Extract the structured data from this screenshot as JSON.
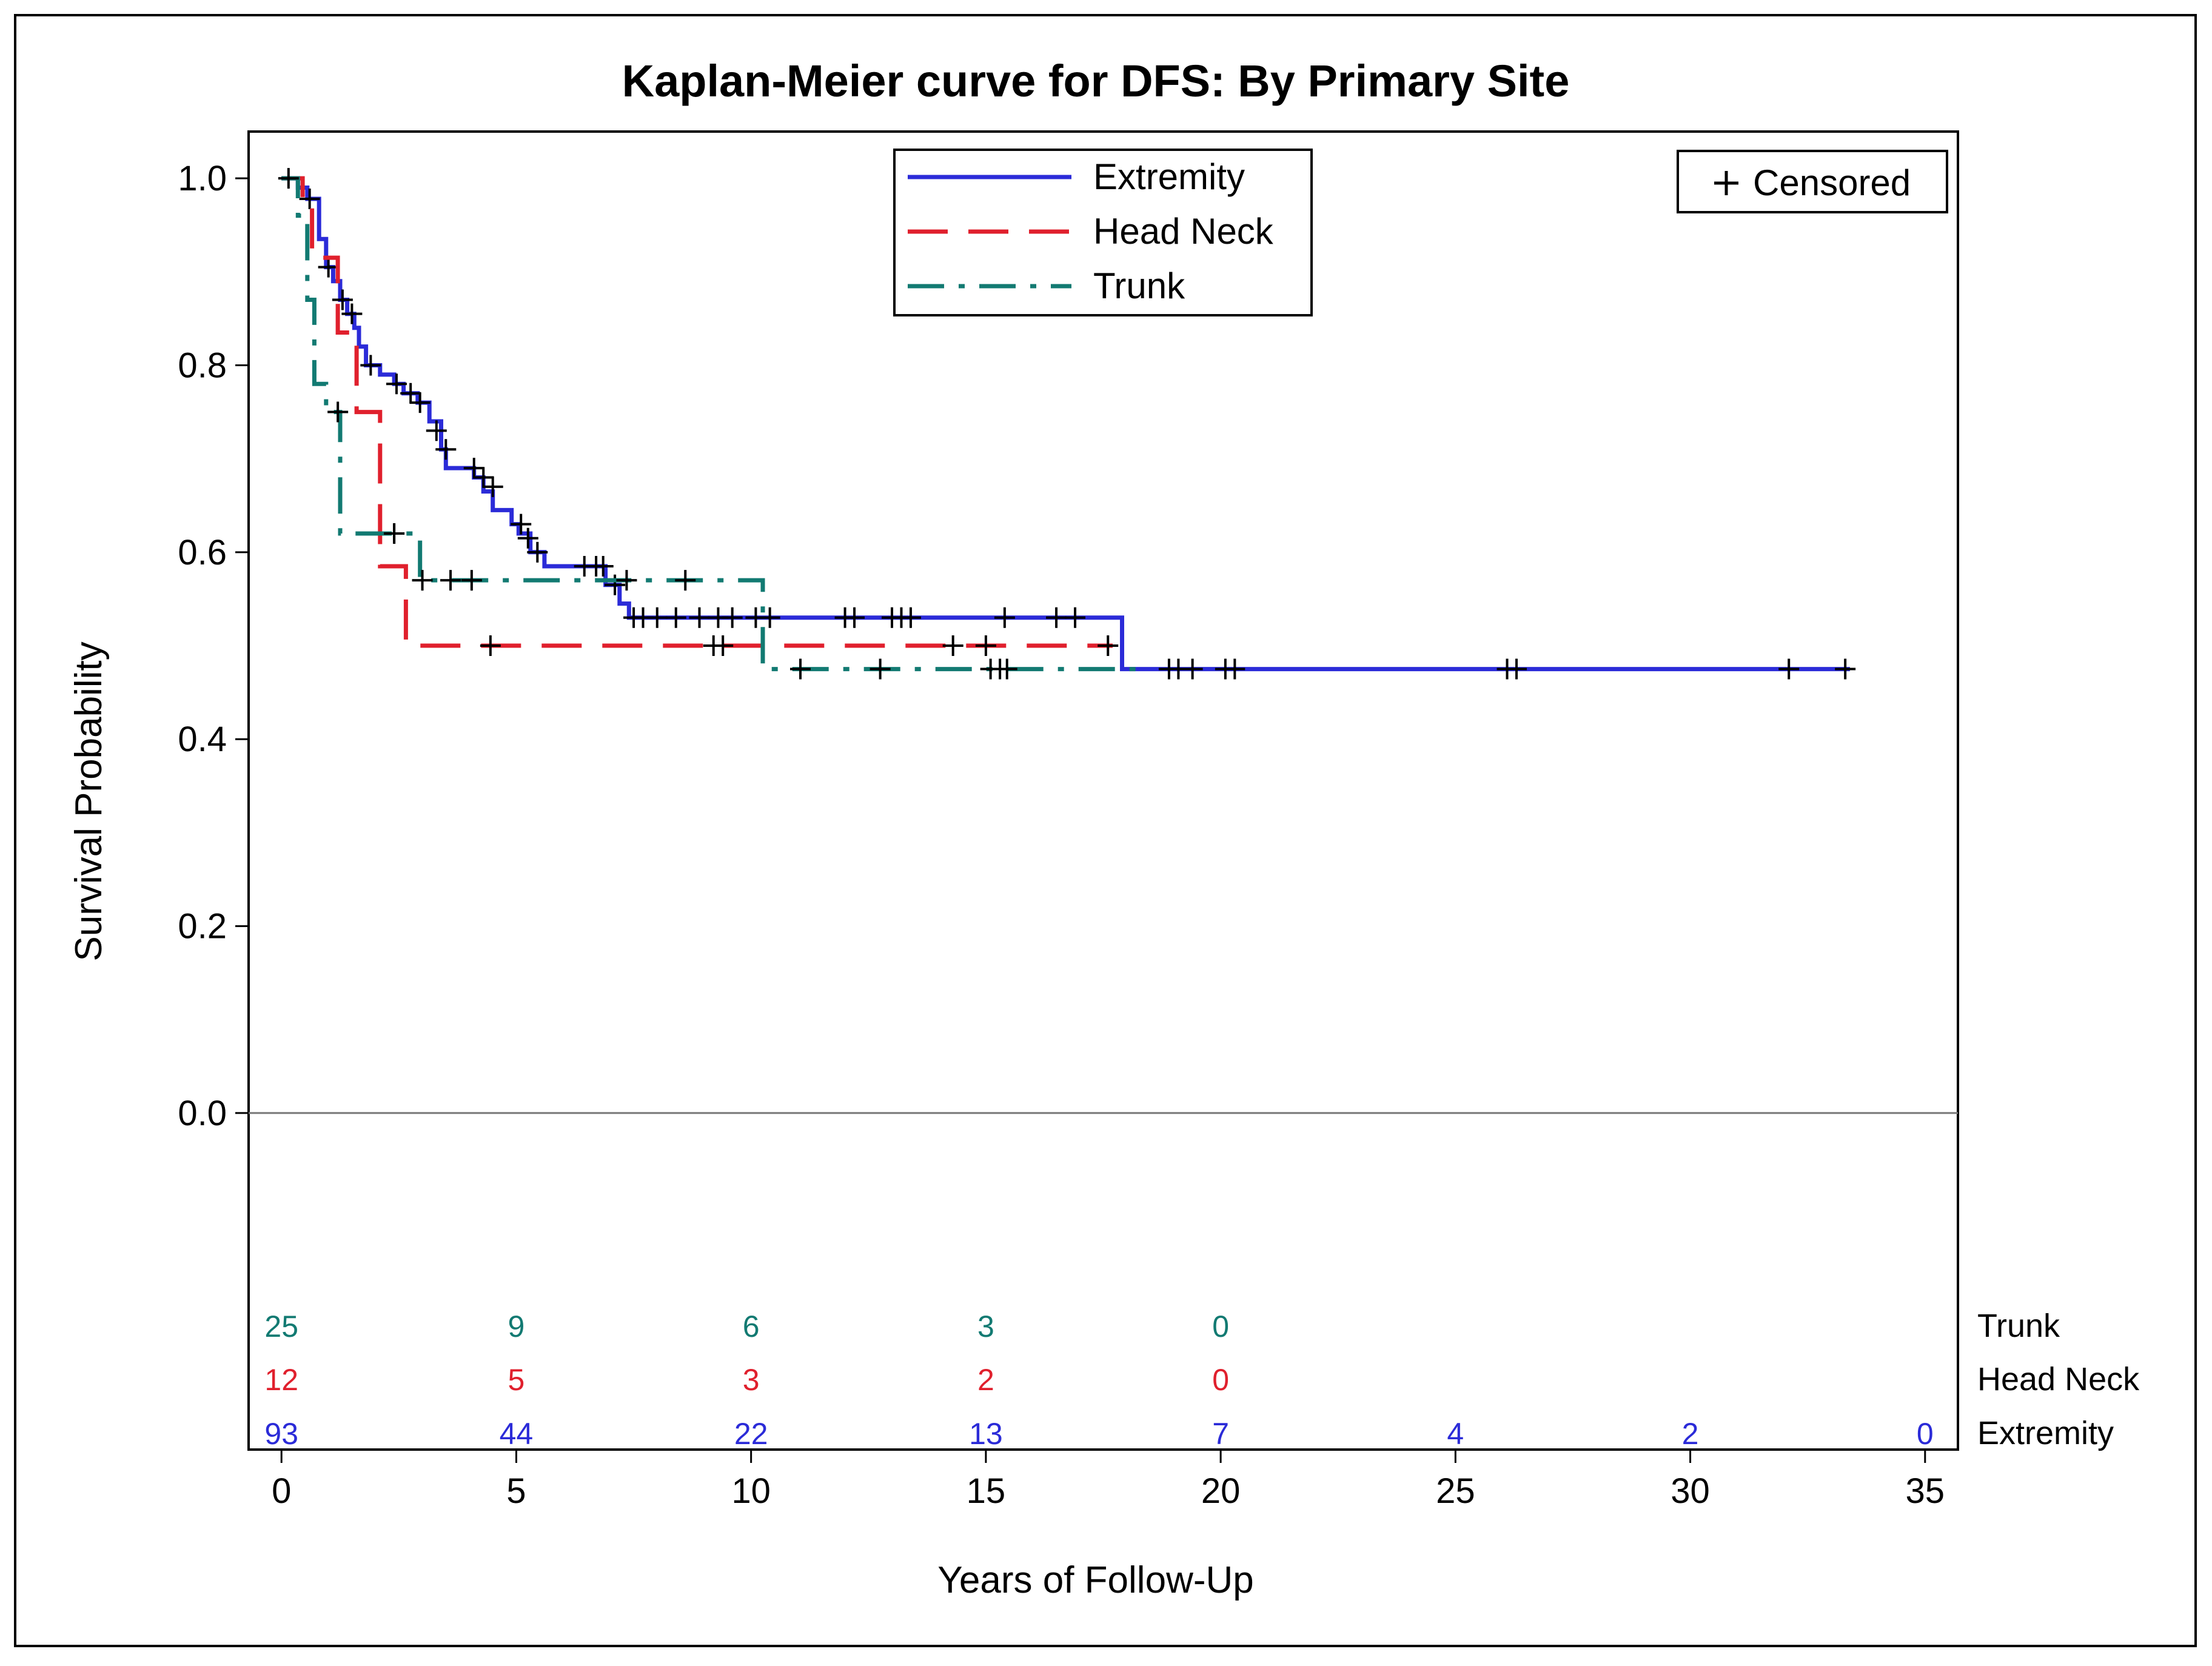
{
  "chart_data": {
    "type": "line",
    "subtype": "kaplan-meier-step",
    "title": "Kaplan-Meier curve for DFS: By Primary Site",
    "xlabel": "Years of Follow-Up",
    "ylabel": "Survival Probability",
    "xlim": [
      -0.7,
      35.7
    ],
    "ylim": [
      -0.36,
      1.05
    ],
    "x_ticks": [
      0,
      5,
      10,
      15,
      20,
      25,
      30,
      35
    ],
    "x_tick_labels": [
      "0",
      "5",
      "10",
      "15",
      "20",
      "25",
      "30",
      "35"
    ],
    "y_ticks": [
      0.0,
      0.2,
      0.4,
      0.6,
      0.8,
      1.0
    ],
    "y_tick_labels": [
      "0.0",
      "0.2",
      "0.4",
      "0.6",
      "0.8",
      "1.0"
    ],
    "legend_placement": "top-center",
    "legend": [
      "Extremity",
      "Head Neck",
      "Trunk"
    ],
    "censored_legend_label": "Censored",
    "censored_legend_placement": "top-right",
    "censor_marker": "+",
    "series": [
      {
        "name": "Extremity",
        "color": "#2b2bd8",
        "dash": "solid",
        "steps": [
          [
            0,
            1.0
          ],
          [
            0.35,
            0.99
          ],
          [
            0.55,
            0.978
          ],
          [
            0.8,
            0.935
          ],
          [
            0.95,
            0.905
          ],
          [
            1.1,
            0.89
          ],
          [
            1.25,
            0.87
          ],
          [
            1.4,
            0.855
          ],
          [
            1.55,
            0.84
          ],
          [
            1.65,
            0.82
          ],
          [
            1.8,
            0.8
          ],
          [
            2.1,
            0.79
          ],
          [
            2.4,
            0.78
          ],
          [
            2.6,
            0.77
          ],
          [
            2.9,
            0.76
          ],
          [
            3.15,
            0.74
          ],
          [
            3.4,
            0.71
          ],
          [
            3.5,
            0.69
          ],
          [
            4.1,
            0.68
          ],
          [
            4.3,
            0.665
          ],
          [
            4.5,
            0.645
          ],
          [
            4.9,
            0.63
          ],
          [
            5.05,
            0.62
          ],
          [
            5.3,
            0.6
          ],
          [
            5.6,
            0.585
          ],
          [
            6.4,
            0.585
          ],
          [
            6.9,
            0.565
          ],
          [
            7.2,
            0.545
          ],
          [
            7.4,
            0.53
          ],
          [
            17.9,
            0.53
          ],
          [
            17.9,
            0.475
          ],
          [
            33.4,
            0.475
          ]
        ],
        "censored": [
          [
            0.6,
            0.978
          ],
          [
            1.0,
            0.905
          ],
          [
            1.3,
            0.87
          ],
          [
            1.5,
            0.855
          ],
          [
            1.9,
            0.8
          ],
          [
            2.45,
            0.78
          ],
          [
            2.75,
            0.77
          ],
          [
            2.95,
            0.76
          ],
          [
            3.3,
            0.73
          ],
          [
            3.5,
            0.71
          ],
          [
            4.1,
            0.69
          ],
          [
            4.3,
            0.68
          ],
          [
            4.5,
            0.67
          ],
          [
            5.1,
            0.63
          ],
          [
            5.25,
            0.615
          ],
          [
            5.45,
            0.6
          ],
          [
            6.45,
            0.585
          ],
          [
            6.7,
            0.585
          ],
          [
            6.85,
            0.585
          ],
          [
            7.1,
            0.565
          ],
          [
            7.5,
            0.53
          ],
          [
            7.7,
            0.53
          ],
          [
            8.0,
            0.53
          ],
          [
            8.4,
            0.53
          ],
          [
            8.9,
            0.53
          ],
          [
            9.3,
            0.53
          ],
          [
            9.6,
            0.53
          ],
          [
            10.1,
            0.53
          ],
          [
            10.4,
            0.53
          ],
          [
            12.0,
            0.53
          ],
          [
            12.2,
            0.53
          ],
          [
            13.0,
            0.53
          ],
          [
            13.2,
            0.53
          ],
          [
            13.4,
            0.53
          ],
          [
            15.4,
            0.53
          ],
          [
            16.5,
            0.53
          ],
          [
            16.9,
            0.53
          ],
          [
            18.9,
            0.475
          ],
          [
            19.1,
            0.475
          ],
          [
            19.4,
            0.475
          ],
          [
            20.1,
            0.475
          ],
          [
            20.3,
            0.475
          ],
          [
            26.1,
            0.475
          ],
          [
            26.3,
            0.475
          ],
          [
            32.1,
            0.475
          ],
          [
            33.3,
            0.475
          ]
        ]
      },
      {
        "name": "Head Neck",
        "color": "#e0202d",
        "dash": "long-dash",
        "steps": [
          [
            0,
            1.0
          ],
          [
            0.45,
            1.0
          ],
          [
            0.45,
            0.975
          ],
          [
            0.65,
            0.975
          ],
          [
            0.65,
            0.915
          ],
          [
            1.2,
            0.915
          ],
          [
            1.2,
            0.835
          ],
          [
            1.6,
            0.835
          ],
          [
            1.6,
            0.75
          ],
          [
            2.1,
            0.75
          ],
          [
            2.1,
            0.585
          ],
          [
            2.65,
            0.585
          ],
          [
            2.65,
            0.5
          ],
          [
            17.7,
            0.5
          ]
        ],
        "censored": [
          [
            2.4,
            0.62
          ],
          [
            4.45,
            0.5
          ],
          [
            9.2,
            0.5
          ],
          [
            9.4,
            0.5
          ],
          [
            14.3,
            0.5
          ],
          [
            15.0,
            0.5
          ],
          [
            17.6,
            0.5
          ]
        ]
      },
      {
        "name": "Trunk",
        "color": "#127a72",
        "dash": "dash-dot",
        "steps": [
          [
            0,
            1.0
          ],
          [
            0.35,
            1.0
          ],
          [
            0.35,
            0.96
          ],
          [
            0.55,
            0.96
          ],
          [
            0.55,
            0.87
          ],
          [
            0.7,
            0.87
          ],
          [
            0.7,
            0.78
          ],
          [
            0.95,
            0.78
          ],
          [
            0.95,
            0.75
          ],
          [
            1.25,
            0.75
          ],
          [
            1.25,
            0.62
          ],
          [
            2.95,
            0.62
          ],
          [
            2.95,
            0.57
          ],
          [
            10.25,
            0.57
          ],
          [
            10.25,
            0.475
          ],
          [
            18.3,
            0.475
          ]
        ],
        "censored": [
          [
            0.15,
            1.0
          ],
          [
            1.2,
            0.75
          ],
          [
            2.4,
            0.62
          ],
          [
            3.0,
            0.57
          ],
          [
            3.6,
            0.57
          ],
          [
            4.05,
            0.57
          ],
          [
            7.35,
            0.57
          ],
          [
            8.6,
            0.57
          ],
          [
            11.05,
            0.475
          ],
          [
            12.75,
            0.475
          ],
          [
            15.1,
            0.475
          ],
          [
            15.3,
            0.475
          ],
          [
            15.45,
            0.475
          ]
        ]
      }
    ],
    "risk_table": {
      "rows": [
        {
          "name": "Trunk",
          "color": "#127a72",
          "x": [
            0,
            5,
            10,
            15,
            20
          ],
          "values": [
            "25",
            "9",
            "6",
            "3",
            "0"
          ]
        },
        {
          "name": "Head Neck",
          "color": "#e0202d",
          "x": [
            0,
            5,
            10,
            15,
            20
          ],
          "values": [
            "12",
            "5",
            "3",
            "2",
            "0"
          ]
        },
        {
          "name": "Extremity",
          "color": "#2b2bd8",
          "x": [
            0,
            5,
            10,
            15,
            20,
            25,
            30,
            35
          ],
          "values": [
            "93",
            "44",
            "22",
            "13",
            "7",
            "4",
            "2",
            "0"
          ]
        }
      ]
    }
  }
}
